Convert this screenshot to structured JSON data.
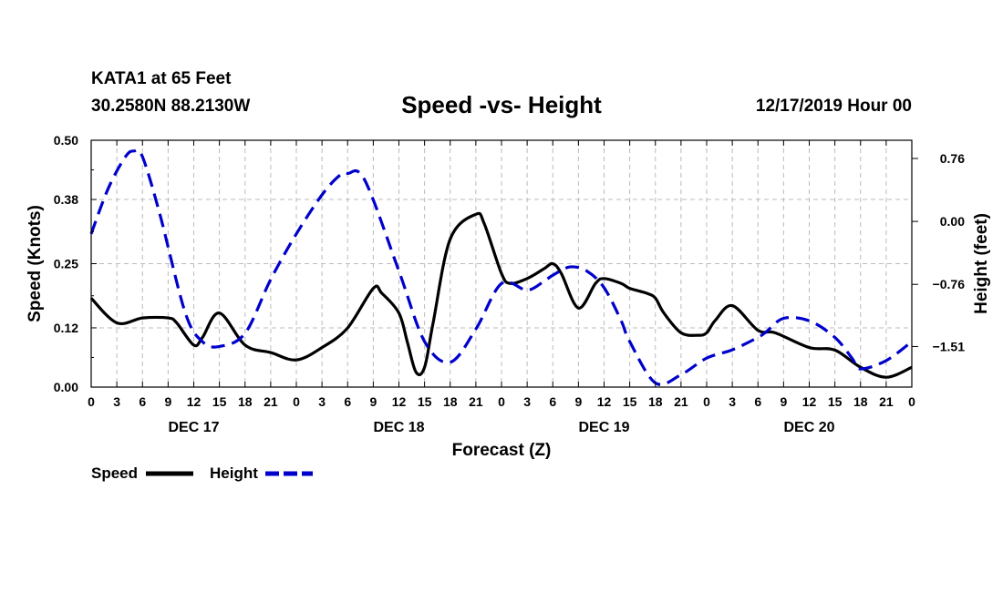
{
  "header": {
    "station": "KATA1 at 65 Feet",
    "coords": "30.2580N 88.2130W",
    "title": "Speed -vs- Height",
    "datetime": "12/17/2019 Hour 00"
  },
  "colors": {
    "speed": "#000000",
    "height": "#0000cc",
    "grid": "#bbbbbb",
    "axis": "#000000"
  },
  "chart_data": {
    "type": "line",
    "title": "Speed -vs- Height",
    "xlabel": "Forecast (Z)",
    "ylabel": "Speed (Knots)",
    "y2label": "Height (feet)",
    "x_unit": "hours from 12/17/2019 00Z",
    "xlim": [
      0,
      96
    ],
    "x_ticks": [
      0,
      3,
      6,
      9,
      12,
      15,
      18,
      21,
      24,
      27,
      30,
      33,
      36,
      39,
      42,
      45,
      48,
      51,
      54,
      57,
      60,
      63,
      66,
      69,
      72,
      75,
      78,
      81,
      84,
      87,
      90,
      93,
      96
    ],
    "x_tick_labels": [
      "0",
      "3",
      "6",
      "9",
      "12",
      "15",
      "18",
      "21",
      "0",
      "3",
      "6",
      "9",
      "12",
      "15",
      "18",
      "21",
      "0",
      "3",
      "6",
      "9",
      "12",
      "15",
      "18",
      "21",
      "0",
      "3",
      "6",
      "9",
      "12",
      "15",
      "18",
      "21",
      "0"
    ],
    "day_labels": [
      {
        "x": 12,
        "label": "DEC 17"
      },
      {
        "x": 36,
        "label": "DEC 18"
      },
      {
        "x": 60,
        "label": "DEC 19"
      },
      {
        "x": 84,
        "label": "DEC 20"
      }
    ],
    "ylim": [
      0,
      0.5
    ],
    "y_ticks": [
      0,
      0.12,
      0.25,
      0.38,
      0.5
    ],
    "y_tick_labels": [
      "0.00",
      "0.12",
      "0.25",
      "0.38",
      "0.50"
    ],
    "y2lim": [
      -2.0,
      0.98
    ],
    "y2_ticks": [
      0.76,
      0.0,
      -0.76,
      -1.51
    ],
    "y2_tick_labels": [
      "0.76",
      "0.00",
      "−0.76",
      "−1.51"
    ],
    "legend": [
      {
        "name": "Speed",
        "style": "solid"
      },
      {
        "name": "Height",
        "style": "dashed"
      }
    ],
    "series": [
      {
        "name": "Speed",
        "axis": "left",
        "style": "solid",
        "x": [
          0,
          3,
          6,
          9,
          10,
          12,
          13,
          15,
          18,
          21,
          24,
          27,
          30,
          33,
          34,
          36,
          37,
          38,
          39,
          40,
          42,
          45,
          46,
          48,
          49,
          51,
          53,
          54,
          55,
          57,
          59,
          60,
          62,
          63,
          65,
          66,
          67,
          69,
          71,
          72,
          73,
          75,
          78,
          80,
          84,
          87,
          90,
          93,
          96
        ],
        "values": [
          0.18,
          0.13,
          0.14,
          0.14,
          0.13,
          0.085,
          0.1,
          0.15,
          0.085,
          0.07,
          0.055,
          0.08,
          0.12,
          0.2,
          0.19,
          0.15,
          0.09,
          0.03,
          0.04,
          0.13,
          0.3,
          0.35,
          0.33,
          0.23,
          0.21,
          0.22,
          0.24,
          0.25,
          0.23,
          0.16,
          0.21,
          0.22,
          0.21,
          0.2,
          0.19,
          0.18,
          0.15,
          0.11,
          0.105,
          0.11,
          0.135,
          0.165,
          0.115,
          0.11,
          0.08,
          0.075,
          0.04,
          0.02,
          0.04
        ]
      },
      {
        "name": "Height",
        "axis": "right",
        "style": "dashed",
        "x": [
          0,
          2,
          4,
          5,
          6,
          8,
          11,
          13,
          15,
          18,
          21,
          24,
          27,
          29,
          30,
          32,
          36,
          39,
          42,
          45,
          48,
          51,
          53,
          54,
          56,
          58,
          60,
          62,
          63,
          66,
          69,
          72,
          75,
          78,
          79,
          81,
          84,
          87,
          89,
          90,
          93,
          96
        ],
        "values": [
          -0.15,
          0.4,
          0.78,
          0.85,
          0.78,
          0.1,
          -1.1,
          -1.45,
          -1.51,
          -1.35,
          -0.7,
          -0.15,
          0.32,
          0.55,
          0.58,
          0.5,
          -0.6,
          -1.45,
          -1.7,
          -1.3,
          -0.75,
          -0.83,
          -0.72,
          -0.65,
          -0.55,
          -0.6,
          -0.8,
          -1.2,
          -1.45,
          -1.95,
          -1.85,
          -1.65,
          -1.55,
          -1.4,
          -1.33,
          -1.17,
          -1.2,
          -1.4,
          -1.65,
          -1.78,
          -1.68,
          -1.45
        ]
      }
    ]
  }
}
